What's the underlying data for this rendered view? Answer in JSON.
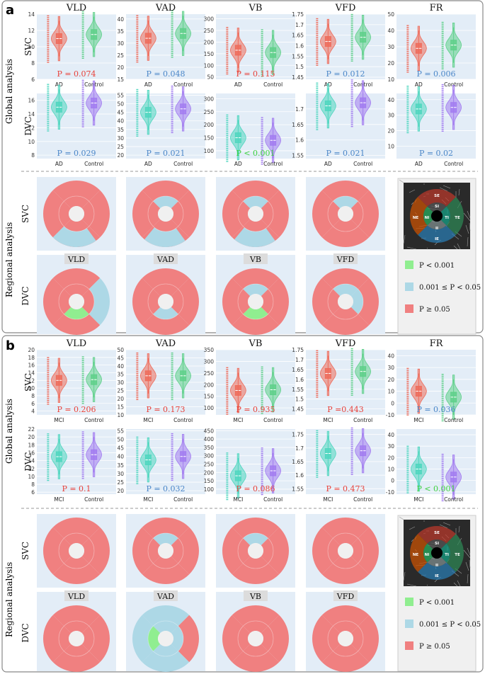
{
  "legend_colors": {
    "green": "#90ee90",
    "blue": "#add8e6",
    "red": "#f08080"
  },
  "series_colors": {
    "red": "#ef6b5a",
    "green": "#5fd08a",
    "teal": "#4fd6bf",
    "purple": "#a27cf0"
  },
  "chart_data": [
    {
      "type": "violin",
      "panel": "a",
      "label": "a",
      "row_label": "Global analysis",
      "group_a": "AD",
      "group_b": "Control",
      "metrics": [
        "VLD",
        "VAD",
        "VB",
        "VFD",
        "FR"
      ],
      "svc": {
        "name": "SVC",
        "charts": [
          {
            "title": "VLD",
            "ylim": [
              6,
              14
            ],
            "ticks": [
              "6",
              "8",
              "10",
              "12",
              "14"
            ],
            "p": "P = 0.074",
            "p_color": "red",
            "colors": [
              "red",
              "green"
            ],
            "medians": [
              11,
              11.5
            ]
          },
          {
            "title": "VAD",
            "ylim": [
              15,
              42
            ],
            "ticks": [
              "15",
              "20",
              "25",
              "30",
              "35",
              "40"
            ],
            "p": "P = 0.048",
            "p_color": "blue",
            "colors": [
              "red",
              "green"
            ],
            "medians": [
              32,
              34
            ]
          },
          {
            "title": "VB",
            "ylim": [
              40,
              320
            ],
            "ticks": [
              "50",
              "100",
              "150",
              "200",
              "250",
              "300"
            ],
            "p": "P = 0.115",
            "p_color": "red",
            "colors": [
              "red",
              "green"
            ],
            "medians": [
              165,
              155
            ]
          },
          {
            "title": "VFD",
            "ylim": [
              1.44,
              1.75
            ],
            "ticks": [
              "1.45",
              "1.5",
              "1.55",
              "1.6",
              "1.65",
              "1.7",
              "1.75"
            ],
            "p": "P = 0.012",
            "p_color": "blue",
            "colors": [
              "red",
              "green"
            ],
            "medians": [
              1.62,
              1.64
            ]
          },
          {
            "title": "FR",
            "ylim": [
              10,
              50
            ],
            "ticks": [
              "10",
              "20",
              "30",
              "40",
              "50"
            ],
            "p": "P = 0.006",
            "p_color": "blue",
            "colors": [
              "red",
              "green"
            ],
            "medians": [
              29,
              31
            ]
          }
        ]
      },
      "dvc": {
        "name": "DVC",
        "charts": [
          {
            "title": "VLD",
            "ylim": [
              7.5,
              17
            ],
            "ticks": [
              "8",
              "10",
              "12",
              "14",
              "16"
            ],
            "p": "P = 0.029",
            "p_color": "blue",
            "colors": [
              "teal",
              "purple"
            ],
            "medians": [
              15,
              15.6
            ]
          },
          {
            "title": "VAD",
            "ylim": [
              18,
              56
            ],
            "ticks": [
              "20",
              "25",
              "30",
              "35",
              "40",
              "45",
              "50",
              "55"
            ],
            "p": "P = 0.021",
            "p_color": "blue",
            "colors": [
              "teal",
              "purple"
            ],
            "medians": [
              45,
              47
            ]
          },
          {
            "title": "VB",
            "ylim": [
              70,
              320
            ],
            "ticks": [
              "100",
              "150",
              "200",
              "250",
              "300"
            ],
            "p": "P < 0.001",
            "p_color": "green",
            "colors": [
              "teal",
              "purple"
            ],
            "medians": [
              150,
              140
            ]
          },
          {
            "title": "VFD",
            "ylim": [
              1.54,
              1.75
            ],
            "ticks": [
              "1.55",
              "1.6",
              "1.65",
              "1.7"
            ],
            "p": "P = 0.021",
            "p_color": "blue",
            "colors": [
              "teal",
              "purple"
            ],
            "medians": [
              1.71,
              1.72
            ]
          },
          {
            "title": "FR",
            "ylim": [
              2,
              44
            ],
            "ticks": [
              "10",
              "20",
              "30",
              "40"
            ],
            "p": "P = 0.02",
            "p_color": "blue",
            "colors": [
              "teal",
              "purple"
            ],
            "medians": [
              34,
              35
            ]
          }
        ]
      },
      "regional": {
        "label": "Regional analysis",
        "titles": [
          "VLD",
          "VAD",
          "VB",
          "VFD"
        ],
        "svc": [
          {
            "outer": [
              "red",
              "red",
              "red",
              "red"
            ],
            "inner": [
              "red",
              "red",
              "red",
              "red"
            ],
            "special": "svc-vld-a"
          },
          {
            "outer": [
              "red",
              "red",
              "red",
              "red"
            ],
            "inner": [
              "blue",
              "red",
              "red",
              "red"
            ],
            "special": "svc-vad-a"
          },
          {
            "outer": [
              "red",
              "red",
              "red",
              "red"
            ],
            "inner": [
              "blue",
              "red",
              "red",
              "red"
            ],
            "special": "svc-vb-a"
          },
          {
            "outer": [
              "red",
              "red",
              "red",
              "red"
            ],
            "inner": [
              "blue",
              "red",
              "red",
              "red"
            ],
            "special": "none"
          }
        ],
        "dvc": [
          {
            "outer": [
              "red",
              "blue",
              "red",
              "red"
            ],
            "inner": [
              "red",
              "red",
              "green",
              "red"
            ],
            "special": "none"
          },
          {
            "outer": [
              "red",
              "red",
              "red",
              "red"
            ],
            "inner": [
              "red",
              "red",
              "blue",
              "red"
            ],
            "special": "none"
          },
          {
            "outer": [
              "red",
              "red",
              "red",
              "red"
            ],
            "inner": [
              "blue",
              "red",
              "green",
              "red"
            ],
            "special": "none"
          },
          {
            "outer": [
              "red",
              "red",
              "red",
              "red"
            ],
            "inner": [
              "blue",
              "blue",
              "red",
              "red"
            ],
            "special": "none"
          }
        ]
      }
    },
    {
      "type": "violin",
      "panel": "b",
      "label": "b",
      "row_label": "Global analysis",
      "group_a": "MCI",
      "group_b": "Control",
      "metrics": [
        "VLD",
        "VAD",
        "VB",
        "VFD",
        "FR"
      ],
      "svc": {
        "name": "SVC",
        "charts": [
          {
            "title": "VLD",
            "ylim": [
              3,
              20
            ],
            "ticks": [
              "4",
              "6",
              "8",
              "10",
              "12",
              "14",
              "16",
              "18",
              "20"
            ],
            "p": "P = 0.206",
            "p_color": "red",
            "colors": [
              "red",
              "green"
            ],
            "medians": [
              12,
              12.2
            ]
          },
          {
            "title": "VAD",
            "ylim": [
              10,
              50
            ],
            "ticks": [
              "10",
              "15",
              "20",
              "25",
              "30",
              "35",
              "40",
              "45",
              "50"
            ],
            "p": "P = 0.173",
            "p_color": "red",
            "colors": [
              "red",
              "green"
            ],
            "medians": [
              34,
              34
            ]
          },
          {
            "title": "VB",
            "ylim": [
              70,
              350
            ],
            "ticks": [
              "100",
              "150",
              "200",
              "250",
              "300",
              "350"
            ],
            "p": "P = 0.935",
            "p_color": "red",
            "colors": [
              "red",
              "green"
            ],
            "medians": [
              175,
              178
            ]
          },
          {
            "title": "VFD",
            "ylim": [
              1.42,
              1.75
            ],
            "ticks": [
              "1.45",
              "1.5",
              "1.55",
              "1.6",
              "1.65",
              "1.7",
              "1.75"
            ],
            "p": "P =0.443",
            "p_color": "red",
            "colors": [
              "red",
              "green"
            ],
            "medians": [
              1.63,
              1.64
            ]
          },
          {
            "title": "FR",
            "ylim": [
              -10,
              45
            ],
            "ticks": [
              "-10",
              "0",
              "10",
              "20",
              "30",
              "40"
            ],
            "p": "P = 0.036",
            "p_color": "blue",
            "colors": [
              "red",
              "green"
            ],
            "medians": [
              10,
              5
            ]
          }
        ]
      },
      "dvc": {
        "name": "DVC",
        "charts": [
          {
            "title": "VLD",
            "ylim": [
              5.5,
              22
            ],
            "ticks": [
              "6",
              "8",
              "10",
              "12",
              "14",
              "16",
              "18",
              "20",
              "22"
            ],
            "p": "P = 0.1",
            "p_color": "red",
            "colors": [
              "teal",
              "purple"
            ],
            "medians": [
              15,
              15.5
            ]
          },
          {
            "title": "VAD",
            "ylim": [
              18,
              56
            ],
            "ticks": [
              "20",
              "25",
              "30",
              "35",
              "40",
              "45",
              "50",
              "55"
            ],
            "p": "P = 0.032",
            "p_color": "blue",
            "colors": [
              "teal",
              "purple"
            ],
            "medians": [
              38,
              40
            ]
          },
          {
            "title": "VB",
            "ylim": [
              70,
              460
            ],
            "ticks": [
              "100",
              "150",
              "200",
              "250",
              "300",
              "350",
              "400",
              "450"
            ],
            "p": "P = 0.086",
            "p_color": "red",
            "colors": [
              "teal",
              "purple"
            ],
            "medians": [
              180,
              210
            ]
          },
          {
            "title": "VFD",
            "ylim": [
              1.53,
              1.77
            ],
            "ticks": [
              "1.55",
              "1.6",
              "1.65",
              "1.7",
              "1.75"
            ],
            "p": "P = 0.473",
            "p_color": "red",
            "colors": [
              "teal",
              "purple"
            ],
            "medians": [
              1.68,
              1.69
            ]
          },
          {
            "title": "FR",
            "ylim": [
              -12,
              45
            ],
            "ticks": [
              "-10",
              "0",
              "10",
              "20",
              "30",
              "40"
            ],
            "p": "P < 0.001",
            "p_color": "green",
            "colors": [
              "teal",
              "purple"
            ],
            "medians": [
              10,
              3
            ]
          }
        ]
      },
      "regional": {
        "label": "Regional analysis",
        "titles": [
          "VLD",
          "VAD",
          "VB",
          "VFD"
        ],
        "svc": [
          {
            "outer": [
              "red",
              "red",
              "red",
              "red"
            ],
            "inner": [
              "red",
              "red",
              "red",
              "red"
            ],
            "special": "none"
          },
          {
            "outer": [
              "red",
              "red",
              "red",
              "red"
            ],
            "inner": [
              "blue",
              "red",
              "red",
              "red"
            ],
            "special": "none"
          },
          {
            "outer": [
              "red",
              "red",
              "red",
              "red"
            ],
            "inner": [
              "blue",
              "red",
              "red",
              "red"
            ],
            "special": "none"
          },
          {
            "outer": [
              "red",
              "red",
              "red",
              "red"
            ],
            "inner": [
              "red",
              "red",
              "red",
              "red"
            ],
            "special": "none"
          }
        ],
        "dvc": [
          {
            "outer": [
              "red",
              "red",
              "red",
              "red"
            ],
            "inner": [
              "red",
              "red",
              "red",
              "red"
            ],
            "special": "none"
          },
          {
            "outer": [
              "blue",
              "red",
              "blue",
              "blue"
            ],
            "inner": [
              "blue",
              "blue",
              "blue",
              "green"
            ],
            "special": "none"
          },
          {
            "outer": [
              "red",
              "red",
              "red",
              "red"
            ],
            "inner": [
              "red",
              "red",
              "red",
              "red"
            ],
            "special": "none"
          },
          {
            "outer": [
              "red",
              "red",
              "red",
              "red"
            ],
            "inner": [
              "red",
              "red",
              "red",
              "red"
            ],
            "special": "none"
          }
        ]
      }
    }
  ],
  "legend": {
    "items": [
      {
        "text": "P < 0.001",
        "color": "green"
      },
      {
        "text": "0.001 ≤ P < 0.05",
        "color": "blue"
      },
      {
        "text": "P ≥ 0.05",
        "color": "red"
      }
    ]
  },
  "oct_labels": [
    "SE",
    "SI",
    "NE",
    "NI",
    "TI",
    "TE",
    "II",
    "IE"
  ]
}
